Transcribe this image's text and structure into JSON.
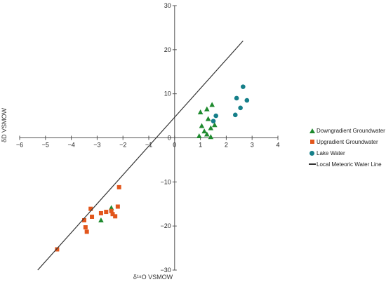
{
  "chart_data": {
    "type": "scatter",
    "title": "",
    "xlabel": "δ¹⁸O VSMOW",
    "ylabel": "δD VSMOW",
    "xlim": [
      -6,
      4
    ],
    "ylim": [
      -30,
      30
    ],
    "x_ticks": [
      -6,
      -5,
      -4,
      -3,
      -2,
      -1,
      0,
      1,
      2,
      3,
      4
    ],
    "y_ticks": [
      -30,
      -20,
      -10,
      0,
      10,
      20,
      30
    ],
    "x_tick_labels": [
      "−6",
      "−5",
      "−4",
      "−3",
      "−2",
      "−1",
      "0",
      "1",
      "2",
      "3",
      "4"
    ],
    "y_tick_labels": [
      "−30",
      "−20",
      "−10",
      "0",
      "10",
      "20",
      "30"
    ],
    "grid": false,
    "legend_position": "right",
    "series": [
      {
        "name": "Downgradient Groundwater",
        "marker": "triangle",
        "color": "#1e8a2e",
        "points": [
          {
            "x": 1.0,
            "y": 5.8
          },
          {
            "x": 1.25,
            "y": 6.5
          },
          {
            "x": 1.45,
            "y": 7.5
          },
          {
            "x": 1.3,
            "y": 4.3
          },
          {
            "x": 1.4,
            "y": 2.2
          },
          {
            "x": 1.05,
            "y": 2.7
          },
          {
            "x": 1.15,
            "y": 1.5
          },
          {
            "x": 1.55,
            "y": 2.9
          },
          {
            "x": 1.25,
            "y": 0.8
          },
          {
            "x": 0.95,
            "y": 0.4
          },
          {
            "x": 1.4,
            "y": 0.2
          },
          {
            "x": -2.45,
            "y": -15.9
          },
          {
            "x": -2.85,
            "y": -18.7
          }
        ]
      },
      {
        "name": "Upgradient Groundwater",
        "marker": "square",
        "color": "#e2561c",
        "points": [
          {
            "x": -4.55,
            "y": -25.3
          },
          {
            "x": -3.5,
            "y": -18.7
          },
          {
            "x": -3.45,
            "y": -20.3
          },
          {
            "x": -3.4,
            "y": -21.3
          },
          {
            "x": -3.25,
            "y": -16.1
          },
          {
            "x": -3.2,
            "y": -17.9
          },
          {
            "x": -2.85,
            "y": -17.1
          },
          {
            "x": -2.65,
            "y": -16.8
          },
          {
            "x": -2.45,
            "y": -16.6
          },
          {
            "x": -2.4,
            "y": -17.3
          },
          {
            "x": -2.3,
            "y": -17.8
          },
          {
            "x": -2.2,
            "y": -15.6
          },
          {
            "x": -2.15,
            "y": -11.2
          }
        ]
      },
      {
        "name": "Lake Water",
        "marker": "circle",
        "color": "#157f89",
        "points": [
          {
            "x": 2.65,
            "y": 11.6
          },
          {
            "x": 2.4,
            "y": 9.0
          },
          {
            "x": 2.8,
            "y": 8.5
          },
          {
            "x": 2.55,
            "y": 6.8
          },
          {
            "x": 2.35,
            "y": 5.2
          },
          {
            "x": 1.6,
            "y": 5.0
          },
          {
            "x": 1.5,
            "y": 3.8
          }
        ]
      },
      {
        "name": "Local Meteoric Water Line",
        "marker": "line",
        "color": "#333333",
        "points": [
          {
            "x": -5.3,
            "y": -30.0
          },
          {
            "x": 2.65,
            "y": 22.0
          }
        ]
      }
    ]
  }
}
